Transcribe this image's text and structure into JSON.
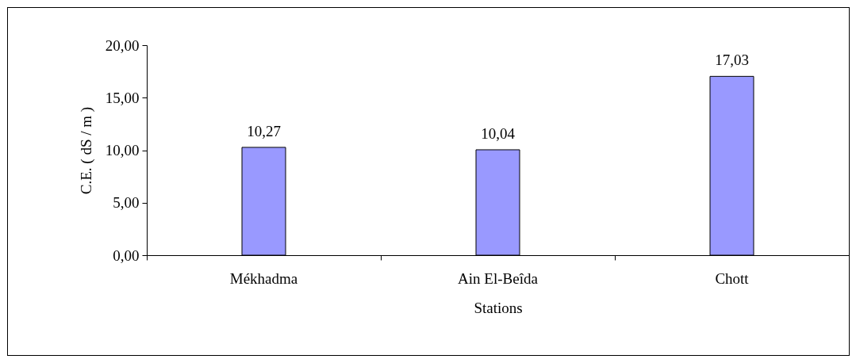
{
  "chart_data": {
    "type": "bar",
    "xlabel": "Stations",
    "ylabel": "C.E. ( dS / m )",
    "categories": [
      "Mékhadma",
      "Ain El-Beîda",
      "Chott"
    ],
    "values": [
      10.27,
      10.04,
      17.03
    ],
    "value_labels": [
      "10,27",
      "10,04",
      "17,03"
    ],
    "color": "#9999ff",
    "ylim": [
      0,
      20
    ],
    "yticks": [
      {
        "value": 0,
        "label": "0,00"
      },
      {
        "value": 5,
        "label": "5,00"
      },
      {
        "value": 10,
        "label": "10,00"
      },
      {
        "value": 15,
        "label": "15,00"
      },
      {
        "value": 20,
        "label": "20,00"
      }
    ],
    "grid": false
  }
}
